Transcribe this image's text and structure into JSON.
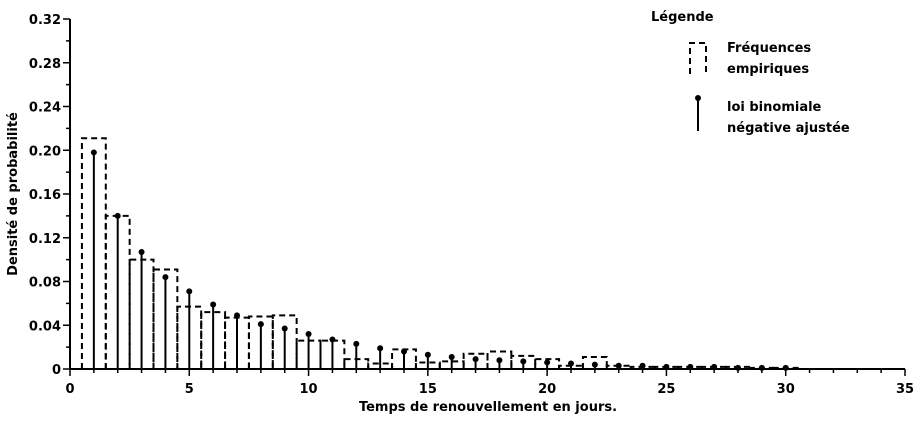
{
  "chart_data": {
    "type": "bar",
    "xlabel": "Temps de renouvellement en jours.",
    "ylabel": "Densité de probabilité",
    "xlim": [
      0,
      35
    ],
    "ylim": [
      0,
      0.32
    ],
    "xticks": [
      "0",
      "5",
      "10",
      "15",
      "20",
      "25",
      "30",
      "35"
    ],
    "yticks": [
      "0",
      "0.04",
      "0.08",
      "0.12",
      "0.16",
      "0.20",
      "0.24",
      "0.28",
      "0.32"
    ],
    "grid": false,
    "legend": {
      "title": "Légende",
      "position": "top-right",
      "entries": [
        {
          "line1": "Fréquences",
          "line2": "empiriques",
          "style": "dashed-bar"
        },
        {
          "line1": "loi binomiale",
          "line2": "négative ajustée",
          "style": "stem"
        }
      ]
    },
    "x": [
      1,
      2,
      3,
      4,
      5,
      6,
      7,
      8,
      9,
      10,
      11,
      12,
      13,
      14,
      15,
      16,
      17,
      18,
      19,
      20,
      21,
      22,
      23,
      24,
      25,
      26,
      27,
      28,
      29,
      30
    ],
    "series": [
      {
        "style": "dashed-bar",
        "values": [
          0.211,
          0.14,
          0.1,
          0.091,
          0.057,
          0.052,
          0.047,
          0.048,
          0.049,
          0.026,
          0.026,
          0.009,
          0.005,
          0.018,
          0.006,
          0.007,
          0.014,
          0.016,
          0.012,
          0.009,
          0.003,
          0.011,
          0.003,
          0.002,
          0.002,
          0.002,
          0.002,
          0.002,
          0.001,
          0.001
        ]
      },
      {
        "style": "stem",
        "values": [
          0.198,
          0.14,
          0.107,
          0.084,
          0.071,
          0.059,
          0.049,
          0.041,
          0.037,
          0.032,
          0.027,
          0.023,
          0.019,
          0.016,
          0.013,
          0.011,
          0.009,
          0.008,
          0.007,
          0.006,
          0.005,
          0.004,
          0.003,
          0.003,
          0.002,
          0.002,
          0.002,
          0.001,
          0.001,
          0.001
        ]
      }
    ]
  }
}
